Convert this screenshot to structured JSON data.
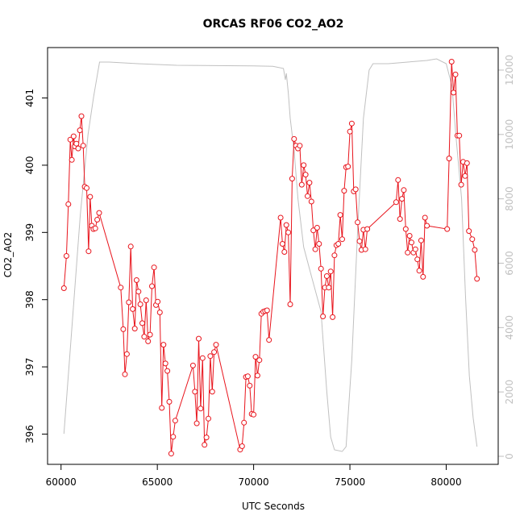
{
  "chart_data": {
    "type": "line",
    "title": "ORCAS RF06 CO2_AO2",
    "xlabel": "UTC Seconds",
    "ylabel": "CO2_AO2",
    "xlim": [
      59300,
      82700
    ],
    "ylim": [
      395.55,
      401.75
    ],
    "y2lim": [
      -250,
      12700
    ],
    "x_ticks": [
      60000,
      65000,
      70000,
      75000,
      80000
    ],
    "y_ticks": [
      396,
      397,
      398,
      399,
      400,
      401
    ],
    "y2_ticks": [
      0,
      2000,
      4000,
      6000,
      8000,
      10000,
      12000
    ],
    "colors": {
      "co2": "#e8141c",
      "altitude": "#c0c0c0",
      "frame": "#000000"
    },
    "series": [
      {
        "key": "co2",
        "points": [
          [
            60150,
            398.17
          ],
          [
            60280,
            398.65
          ],
          [
            60380,
            399.42
          ],
          [
            60480,
            400.38
          ],
          [
            60560,
            400.08
          ],
          [
            60650,
            400.43
          ],
          [
            60720,
            400.28
          ],
          [
            60800,
            400.32
          ],
          [
            60890,
            400.25
          ],
          [
            60980,
            400.52
          ],
          [
            61060,
            400.73
          ],
          [
            61150,
            400.29
          ],
          [
            61230,
            399.68
          ],
          [
            61330,
            399.66
          ],
          [
            61430,
            398.72
          ],
          [
            61510,
            399.53
          ],
          [
            61600,
            399.1
          ],
          [
            61680,
            399.05
          ],
          [
            61780,
            399.06
          ],
          [
            61880,
            399.19
          ],
          [
            61980,
            399.29
          ],
          [
            63100,
            398.18
          ],
          [
            63230,
            397.56
          ],
          [
            63320,
            396.89
          ],
          [
            63420,
            397.19
          ],
          [
            63520,
            397.96
          ],
          [
            63620,
            398.79
          ],
          [
            63720,
            397.86
          ],
          [
            63830,
            397.57
          ],
          [
            63920,
            398.29
          ],
          [
            64020,
            398.12
          ],
          [
            64120,
            397.93
          ],
          [
            64220,
            397.65
          ],
          [
            64320,
            397.45
          ],
          [
            64420,
            397.99
          ],
          [
            64520,
            397.38
          ],
          [
            64620,
            397.48
          ],
          [
            64720,
            398.2
          ],
          [
            64830,
            398.48
          ],
          [
            64930,
            397.92
          ],
          [
            65020,
            397.97
          ],
          [
            65130,
            397.81
          ],
          [
            65230,
            396.39
          ],
          [
            65320,
            397.33
          ],
          [
            65420,
            397.05
          ],
          [
            65520,
            396.94
          ],
          [
            65620,
            396.48
          ],
          [
            65720,
            395.71
          ],
          [
            65820,
            395.96
          ],
          [
            65930,
            396.2
          ],
          [
            66850,
            397.02
          ],
          [
            66950,
            396.63
          ],
          [
            67050,
            396.16
          ],
          [
            67150,
            397.42
          ],
          [
            67250,
            396.38
          ],
          [
            67350,
            397.13
          ],
          [
            67450,
            395.84
          ],
          [
            67550,
            395.95
          ],
          [
            67650,
            396.23
          ],
          [
            67750,
            397.16
          ],
          [
            67850,
            396.63
          ],
          [
            67950,
            397.22
          ],
          [
            68050,
            397.33
          ],
          [
            69300,
            395.77
          ],
          [
            69400,
            395.82
          ],
          [
            69500,
            396.17
          ],
          [
            69600,
            396.85
          ],
          [
            69700,
            396.86
          ],
          [
            69800,
            396.72
          ],
          [
            69900,
            396.3
          ],
          [
            70000,
            396.29
          ],
          [
            70100,
            397.15
          ],
          [
            70200,
            396.87
          ],
          [
            70300,
            397.1
          ],
          [
            70400,
            397.79
          ],
          [
            70500,
            397.82
          ],
          [
            70600,
            397.83
          ],
          [
            70700,
            397.84
          ],
          [
            70800,
            397.4
          ],
          [
            71400,
            399.22
          ],
          [
            71500,
            398.83
          ],
          [
            71600,
            398.71
          ],
          [
            71700,
            399.11
          ],
          [
            71800,
            399.0
          ],
          [
            71900,
            397.93
          ],
          [
            72000,
            399.8
          ],
          [
            72100,
            400.39
          ],
          [
            72200,
            400.29
          ],
          [
            72300,
            400.25
          ],
          [
            72400,
            400.29
          ],
          [
            72500,
            399.71
          ],
          [
            72600,
            400.0
          ],
          [
            72700,
            399.86
          ],
          [
            72800,
            399.54
          ],
          [
            72900,
            399.74
          ],
          [
            73000,
            399.46
          ],
          [
            73100,
            399.03
          ],
          [
            73200,
            398.75
          ],
          [
            73300,
            399.07
          ],
          [
            73400,
            398.83
          ],
          [
            73500,
            398.46
          ],
          [
            73600,
            397.75
          ],
          [
            73700,
            398.18
          ],
          [
            73800,
            398.35
          ],
          [
            73900,
            398.18
          ],
          [
            74000,
            398.42
          ],
          [
            74100,
            397.74
          ],
          [
            74200,
            398.66
          ],
          [
            74300,
            398.81
          ],
          [
            74400,
            398.83
          ],
          [
            74500,
            399.26
          ],
          [
            74600,
            398.9
          ],
          [
            74700,
            399.62
          ],
          [
            74800,
            399.97
          ],
          [
            74900,
            399.98
          ],
          [
            75000,
            400.5
          ],
          [
            75100,
            400.62
          ],
          [
            75200,
            399.61
          ],
          [
            75300,
            399.64
          ],
          [
            75400,
            399.15
          ],
          [
            75500,
            398.87
          ],
          [
            75600,
            398.74
          ],
          [
            75700,
            399.04
          ],
          [
            75800,
            398.75
          ],
          [
            75900,
            399.05
          ],
          [
            77400,
            399.45
          ],
          [
            77500,
            399.78
          ],
          [
            77600,
            399.2
          ],
          [
            77700,
            399.5
          ],
          [
            77800,
            399.63
          ],
          [
            77900,
            399.05
          ],
          [
            78000,
            398.7
          ],
          [
            78100,
            398.95
          ],
          [
            78200,
            398.85
          ],
          [
            78300,
            398.7
          ],
          [
            78400,
            398.75
          ],
          [
            78500,
            398.6
          ],
          [
            78600,
            398.43
          ],
          [
            78700,
            398.88
          ],
          [
            78800,
            398.34
          ],
          [
            78900,
            399.22
          ],
          [
            79000,
            399.1
          ],
          [
            80050,
            399.05
          ],
          [
            80150,
            400.1
          ],
          [
            80280,
            401.54
          ],
          [
            80380,
            401.08
          ],
          [
            80480,
            401.35
          ],
          [
            80580,
            400.44
          ],
          [
            80680,
            400.44
          ],
          [
            80780,
            399.71
          ],
          [
            80880,
            400.05
          ],
          [
            80980,
            399.84
          ],
          [
            81080,
            400.03
          ],
          [
            81180,
            399.02
          ],
          [
            81350,
            398.9
          ],
          [
            81480,
            398.74
          ],
          [
            81600,
            398.31
          ]
        ]
      },
      {
        "key": "altitude",
        "points": [
          [
            60150,
            700
          ],
          [
            60500,
            3500
          ],
          [
            61000,
            7500
          ],
          [
            61400,
            10000
          ],
          [
            61700,
            11200
          ],
          [
            61900,
            11900
          ],
          [
            62000,
            12250
          ],
          [
            62500,
            12250
          ],
          [
            64000,
            12200
          ],
          [
            66000,
            12150
          ],
          [
            68000,
            12140
          ],
          [
            70000,
            12130
          ],
          [
            71000,
            12120
          ],
          [
            71550,
            12050
          ],
          [
            71650,
            11700
          ],
          [
            71700,
            11900
          ],
          [
            71800,
            11300
          ],
          [
            71900,
            10500
          ],
          [
            72100,
            9500
          ],
          [
            72300,
            8000
          ],
          [
            72600,
            6500
          ],
          [
            73000,
            5600
          ],
          [
            73500,
            4500
          ],
          [
            73800,
            2000
          ],
          [
            74000,
            600
          ],
          [
            74200,
            200
          ],
          [
            74600,
            150
          ],
          [
            74800,
            300
          ],
          [
            75100,
            3000
          ],
          [
            75400,
            7000
          ],
          [
            75700,
            10500
          ],
          [
            76000,
            12000
          ],
          [
            76200,
            12200
          ],
          [
            77000,
            12200
          ],
          [
            78000,
            12250
          ],
          [
            79000,
            12300
          ],
          [
            79500,
            12350
          ],
          [
            80000,
            12200
          ],
          [
            80300,
            11500
          ],
          [
            80500,
            10000
          ],
          [
            80800,
            8000
          ],
          [
            81000,
            5000
          ],
          [
            81200,
            2500
          ],
          [
            81400,
            1200
          ],
          [
            81600,
            300
          ]
        ]
      }
    ]
  }
}
